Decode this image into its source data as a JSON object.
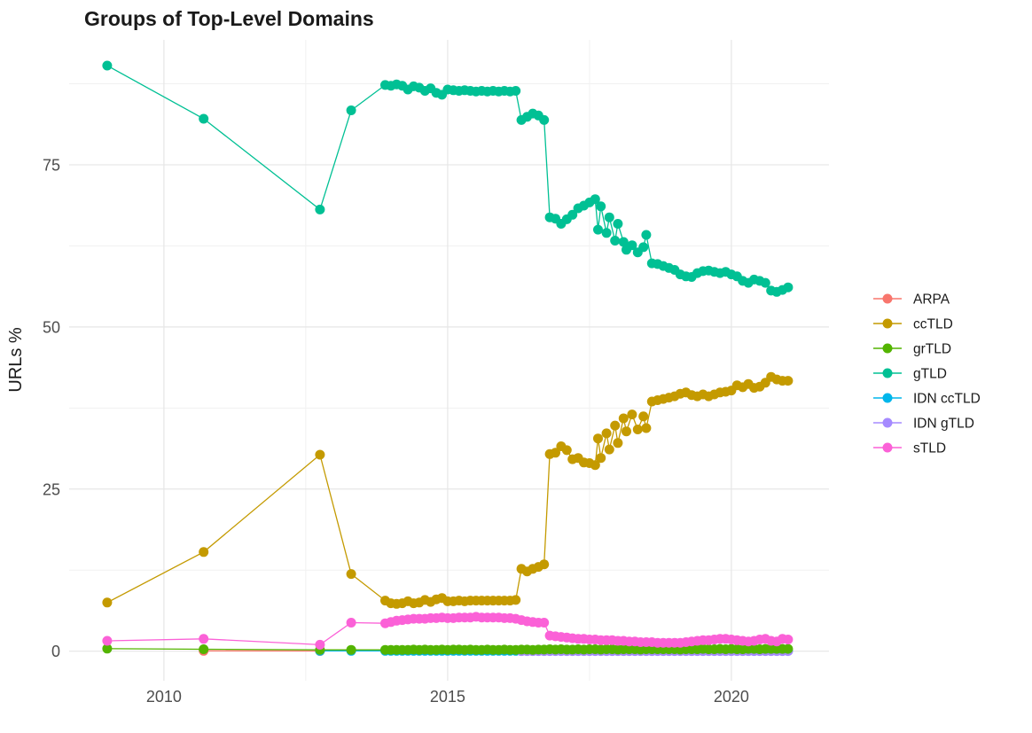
{
  "title": "Groups of Top-Level Domains",
  "colors": {
    "background": "#ffffff",
    "title_text": "#1a1a1a",
    "tick_text": "#4d4d4d",
    "axis_title_text": "#1a1a1a",
    "legend_text": "#1a1a1a",
    "grid_major": "#e6e6e6",
    "grid_minor": "#f1f1f1"
  },
  "chart_data": {
    "type": "line",
    "title": "Groups of Top-Level Domains",
    "xlabel": "",
    "ylabel": "URLs %",
    "grid": true,
    "legend_position": "right",
    "x_range": [
      2008.33,
      2021.72
    ],
    "y_range": [
      -4.55,
      94.26
    ],
    "x_major_ticks": [
      2010,
      2015,
      2020
    ],
    "x_minor_gridlines": [
      2012.5,
      2017.5
    ],
    "y_major_ticks": [
      0,
      25,
      50,
      75
    ],
    "y_minor_gridlines": [
      12.5,
      37.5,
      62.5,
      87.5
    ],
    "draw_order": [
      "ARPA",
      "IDN ccTLD",
      "IDN gTLD",
      "grTLD",
      "ccTLD",
      "gTLD",
      "sTLD"
    ],
    "series": [
      {
        "name": "ARPA",
        "color": "#F8766D",
        "segments": [
          {
            "pairs": [
              [
                2010.7,
                0.05
              ],
              [
                2012.75,
                0.03
              ]
            ]
          }
        ]
      },
      {
        "name": "ccTLD",
        "color": "#C49A00",
        "segments": [
          {
            "pairs": [
              [
                2009.0,
                7.5
              ],
              [
                2010.7,
                15.3
              ],
              [
                2012.75,
                30.3
              ],
              [
                2013.3,
                11.9
              ]
            ]
          },
          {
            "start": 2013.9,
            "step": 0.1,
            "values": [
              7.8,
              7.4,
              7.3,
              7.4,
              7.7,
              7.4,
              7.5,
              7.9,
              7.6,
              8.0,
              8.2,
              7.7,
              7.7,
              7.8,
              7.7,
              7.8,
              7.8,
              7.8,
              7.8,
              7.8,
              7.8,
              7.8,
              7.8,
              7.9,
              12.7,
              12.3,
              12.7,
              13.0,
              13.4,
              30.4,
              30.6,
              31.6,
              31.0,
              29.6,
              29.8,
              29.1,
              29.0,
              28.7
            ]
          },
          {
            "pairs": [
              [
                2017.65,
                32.8
              ],
              [
                2017.7,
                29.8
              ],
              [
                2017.8,
                33.6
              ],
              [
                2017.85,
                31.1
              ],
              [
                2017.95,
                34.8
              ],
              [
                2018.0,
                32.1
              ],
              [
                2018.1,
                35.9
              ],
              [
                2018.15,
                33.9
              ],
              [
                2018.25,
                36.5
              ],
              [
                2018.35,
                34.2
              ],
              [
                2018.45,
                36.2
              ],
              [
                2018.5,
                34.4
              ]
            ]
          },
          {
            "start": 2018.6,
            "step": 0.1,
            "values": [
              38.5,
              38.7,
              38.9,
              39.1,
              39.3,
              39.7,
              39.9,
              39.5,
              39.3,
              39.6,
              39.3,
              39.6,
              39.9,
              40.0,
              40.2,
              41.0,
              40.7,
              41.2,
              40.6,
              40.8,
              41.4,
              42.3,
              41.9,
              41.7,
              41.7
            ]
          }
        ]
      },
      {
        "name": "grTLD",
        "color": "#53B400",
        "segments": [
          {
            "pairs": [
              [
                2009.0,
                0.4
              ],
              [
                2010.7,
                0.3
              ],
              [
                2012.75,
                0.2
              ],
              [
                2013.3,
                0.2
              ]
            ]
          },
          {
            "start": 2013.9,
            "step": 0.1,
            "values": [
              0.2,
              0.2,
              0.2,
              0.2,
              0.2,
              0.25,
              0.2,
              0.25,
              0.2,
              0.2,
              0.25,
              0.2,
              0.25,
              0.25,
              0.2,
              0.25,
              0.2,
              0.2,
              0.25,
              0.2,
              0.2,
              0.25,
              0.2,
              0.2,
              0.25,
              0.25,
              0.2,
              0.25,
              0.25,
              0.3,
              0.25,
              0.3,
              0.25,
              0.25,
              0.3,
              0.25,
              0.3,
              0.3,
              0.25,
              0.3,
              0.3,
              0.25,
              0.3,
              0.3,
              0.3,
              0.25,
              0.3,
              0.3,
              0.3,
              0.3,
              0.3,
              0.3,
              0.25,
              0.3,
              0.3,
              0.3,
              0.35,
              0.3,
              0.3,
              0.35,
              0.3,
              0.35,
              0.3,
              0.3,
              0.35,
              0.35,
              0.3,
              0.35,
              0.35,
              0.35,
              0.35,
              0.35
            ]
          }
        ]
      },
      {
        "name": "gTLD",
        "color": "#00C094",
        "segments": [
          {
            "pairs": [
              [
                2009.0,
                90.3
              ],
              [
                2010.7,
                82.1
              ],
              [
                2012.75,
                68.1
              ],
              [
                2013.3,
                83.4
              ]
            ]
          },
          {
            "start": 2013.9,
            "step": 0.1,
            "values": [
              87.3,
              87.2,
              87.4,
              87.2,
              86.6,
              87.1,
              86.9,
              86.4,
              86.8,
              86.1,
              85.8,
              86.6,
              86.5,
              86.4,
              86.5,
              86.4,
              86.3,
              86.4,
              86.3,
              86.4,
              86.3,
              86.4,
              86.3,
              86.4,
              81.9,
              82.4,
              82.9,
              82.6,
              81.9,
              66.9,
              66.7,
              65.9,
              66.6,
              67.3,
              68.3,
              68.7,
              69.2,
              69.7
            ]
          },
          {
            "pairs": [
              [
                2017.65,
                65.0
              ],
              [
                2017.7,
                68.6
              ],
              [
                2017.8,
                64.5
              ],
              [
                2017.85,
                66.9
              ],
              [
                2017.95,
                63.3
              ],
              [
                2018.0,
                65.9
              ],
              [
                2018.1,
                63.1
              ],
              [
                2018.15,
                61.9
              ],
              [
                2018.25,
                62.6
              ],
              [
                2018.35,
                61.5
              ],
              [
                2018.45,
                62.3
              ],
              [
                2018.5,
                64.2
              ]
            ]
          },
          {
            "start": 2018.6,
            "step": 0.1,
            "values": [
              59.8,
              59.7,
              59.4,
              59.1,
              58.8,
              58.1,
              57.8,
              57.7,
              58.3,
              58.6,
              58.7,
              58.5,
              58.3,
              58.5,
              58.1,
              57.8,
              57.1,
              56.8,
              57.3,
              57.1,
              56.8,
              55.6,
              55.4,
              55.7,
              56.1
            ]
          }
        ]
      },
      {
        "name": "IDN ccTLD",
        "color": "#00B6EB",
        "segments": [
          {
            "pairs": [
              [
                2012.75,
                0.05
              ],
              [
                2013.3,
                0.05
              ]
            ]
          },
          {
            "start": 2013.9,
            "step": 0.1,
            "n": 72,
            "const": 0.05
          }
        ]
      },
      {
        "name": "IDN gTLD",
        "color": "#A58AFF",
        "segments": [
          {
            "start": 2016.3,
            "step": 0.1,
            "n": 48,
            "const": 0.02
          }
        ]
      },
      {
        "name": "sTLD",
        "color": "#FB61D7",
        "segments": [
          {
            "pairs": [
              [
                2009.0,
                1.6
              ],
              [
                2010.7,
                1.9
              ],
              [
                2012.75,
                1.0
              ],
              [
                2013.3,
                4.4
              ]
            ]
          },
          {
            "start": 2013.9,
            "step": 0.1,
            "values": [
              4.3,
              4.5,
              4.7,
              4.8,
              4.9,
              5.0,
              5.0,
              5.0,
              5.1,
              5.1,
              5.2,
              5.1,
              5.1,
              5.2,
              5.2,
              5.2,
              5.3,
              5.2,
              5.2,
              5.2,
              5.2,
              5.1,
              5.1,
              5.0,
              4.8,
              4.6,
              4.5,
              4.4,
              4.4,
              2.4,
              2.3,
              2.2,
              2.1,
              2.0,
              1.9,
              1.9,
              1.8,
              1.8,
              1.7,
              1.7,
              1.7,
              1.6,
              1.6,
              1.5,
              1.5,
              1.4,
              1.4,
              1.4,
              1.3,
              1.3,
              1.3,
              1.3,
              1.3,
              1.4,
              1.5,
              1.6,
              1.7,
              1.7,
              1.8,
              1.9,
              1.9,
              1.8,
              1.7,
              1.6,
              1.5,
              1.6,
              1.8,
              1.9,
              1.6,
              1.5,
              1.9,
              1.8
            ]
          }
        ]
      }
    ]
  }
}
